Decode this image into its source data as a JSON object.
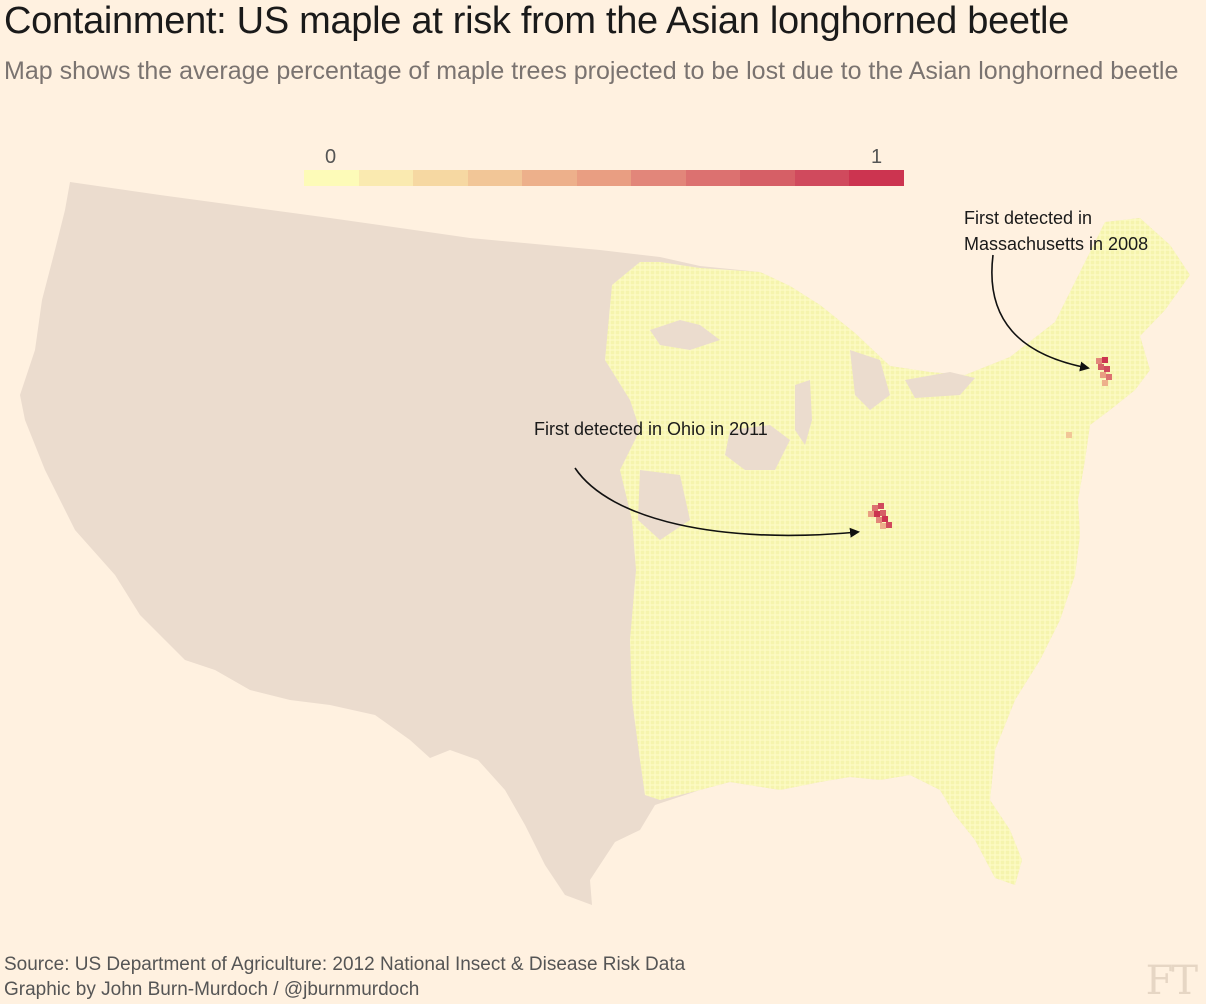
{
  "title": "Containment: US maple at risk from the Asian longhorned beetle",
  "subtitle": "Map shows the average percentage of maple trees projected to be lost due to the Asian longhorned beetle",
  "legend": {
    "min_label": "0",
    "max_label": "1",
    "colors": [
      "#fdfbb8",
      "#faeab0",
      "#f6d8a2",
      "#f2c697",
      "#edb08b",
      "#e99e82",
      "#e2867a",
      "#dc7170",
      "#d65f66",
      "#d04a5d",
      "#cc3450"
    ]
  },
  "map": {
    "land_color": "#ebdcce",
    "risk_base_color": "#f7f7b6",
    "hotspots": [
      {
        "location": "Ohio",
        "max_value": 1
      },
      {
        "location": "Massachusetts",
        "max_value": 1
      }
    ]
  },
  "annotations": {
    "ohio": "First detected in Ohio in 2011",
    "massachusetts": "First detected in Massachusetts in 2008"
  },
  "footer": {
    "source": "Source: US Department of Agriculture: 2012 National Insect & Disease Risk Data",
    "credit": "Graphic by John Burn-Murdoch / @jburnmurdoch"
  },
  "logo": "FT"
}
